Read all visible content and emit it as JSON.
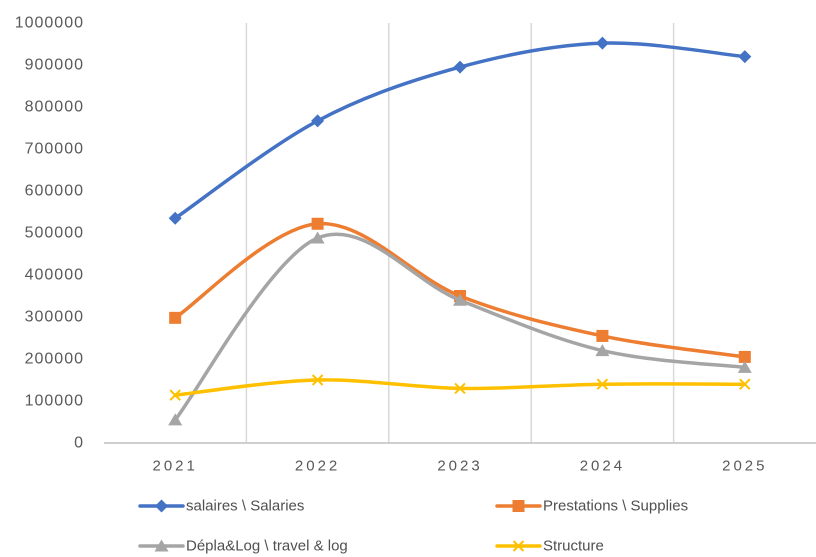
{
  "chart_data": {
    "type": "line",
    "smooth": true,
    "categories": [
      "2021",
      "2022",
      "2023",
      "2024",
      "2025"
    ],
    "ylim": [
      0,
      1000000
    ],
    "y_ticks": [
      "0",
      "100000",
      "200000",
      "300000",
      "400000",
      "500000",
      "600000",
      "700000",
      "800000",
      "900000",
      "1000000"
    ],
    "grid": "vertical",
    "legend_position": "bottom",
    "series": [
      {
        "name": "salaires \\ Salaries",
        "color": "#4472C4",
        "marker": "diamond",
        "values": [
          535000,
          767000,
          895000,
          952000,
          920000
        ]
      },
      {
        "name": "Prestations \\ Supplies",
        "color": "#ED7D31",
        "marker": "square",
        "values": [
          298000,
          522000,
          350000,
          255000,
          205000
        ]
      },
      {
        "name": "Dépla&Log \\ travel & log",
        "color": "#A5A5A5",
        "marker": "triangle",
        "values": [
          55000,
          488000,
          340000,
          220000,
          180000
        ]
      },
      {
        "name": "Structure",
        "color": "#FFC000",
        "marker": "x",
        "values": [
          114000,
          150000,
          130000,
          140000,
          140000
        ]
      }
    ]
  }
}
